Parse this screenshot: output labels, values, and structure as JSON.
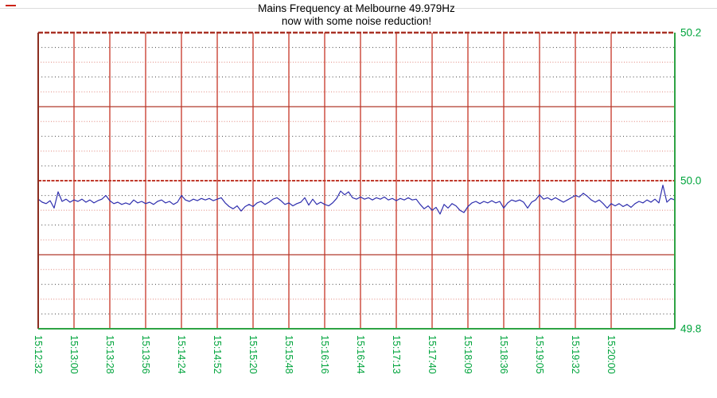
{
  "header": {
    "title": "Mains Frequency at Melbourne 49.979Hz",
    "subtitle": "now with some noise reduction!"
  },
  "decor": {
    "legend_dash_color": "#cc2211",
    "top_rule_color": "#dcdcdc"
  },
  "chart_data": {
    "type": "line",
    "title": "Mains Frequency at Melbourne 49.979Hz",
    "subtitle": "now with some noise reduction!",
    "ylabel": "",
    "xlabel": "",
    "ylim": [
      49.8,
      50.2
    ],
    "y_major_step": 0.1,
    "y_minor_step": 0.02,
    "y_tick_values": [
      50.2,
      50.0,
      49.8
    ],
    "y_tick_labels": [
      "50.2",
      "50.0",
      "49.8"
    ],
    "x_tick_labels": [
      "15:12:32",
      "15:13:00",
      "15:13:28",
      "15:13:56",
      "15:14:24",
      "15:14:52",
      "15:15:20",
      "15:15:48",
      "15:16:16",
      "15:16:44",
      "15:17:13",
      "15:17:40",
      "15:18:09",
      "15:18:36",
      "15:19:05",
      "15:19:32",
      "15:20:00"
    ],
    "x_tick_interval_seconds": 28,
    "x_total_span_in_tick_units": 17.78,
    "grid": {
      "vline_color": "#cb4335",
      "hmajor_color": "#b03a2c",
      "hmajor_zero_color": "#c0392b",
      "minor_dark_color": "#3f3f3f",
      "minor_pink_color": "#e4948a",
      "border_top_color": "#a93226",
      "border_left_color": "#8c2d20",
      "border_right_color": "#2ea344",
      "border_bottom_color": "#2ea344",
      "axis_label_color": "#00a43c"
    },
    "series": [
      {
        "name": "mains-frequency-hz",
        "color": "#2f2fae",
        "values": [
          49.975,
          49.971,
          49.969,
          49.973,
          49.963,
          49.985,
          49.972,
          49.975,
          49.971,
          49.974,
          49.972,
          49.975,
          49.971,
          49.974,
          49.97,
          49.973,
          49.975,
          49.98,
          49.973,
          49.969,
          49.971,
          49.968,
          49.97,
          49.968,
          49.974,
          49.97,
          49.972,
          49.969,
          49.971,
          49.968,
          49.972,
          49.974,
          49.97,
          49.972,
          49.968,
          49.971,
          49.98,
          49.974,
          49.972,
          49.975,
          49.973,
          49.976,
          49.974,
          49.976,
          49.973,
          49.975,
          49.977,
          49.97,
          49.965,
          49.962,
          49.966,
          49.959,
          49.965,
          49.968,
          49.965,
          49.97,
          49.972,
          49.968,
          49.971,
          49.975,
          49.977,
          49.973,
          49.968,
          49.97,
          49.966,
          49.969,
          49.971,
          49.977,
          49.967,
          49.975,
          49.968,
          49.971,
          49.968,
          49.966,
          49.97,
          49.976,
          49.986,
          49.981,
          49.985,
          49.977,
          49.975,
          49.978,
          49.975,
          49.977,
          49.974,
          49.977,
          49.975,
          49.978,
          49.974,
          49.976,
          49.973,
          49.976,
          49.974,
          49.977,
          49.974,
          49.975,
          49.968,
          49.962,
          49.966,
          49.96,
          49.964,
          49.955,
          49.968,
          49.963,
          49.969,
          49.966,
          49.96,
          49.957,
          49.965,
          49.97,
          49.972,
          49.969,
          49.972,
          49.97,
          49.973,
          49.97,
          49.972,
          49.963,
          49.97,
          49.974,
          49.972,
          49.974,
          49.971,
          49.963,
          49.971,
          49.974,
          49.981,
          49.975,
          49.977,
          49.974,
          49.977,
          49.974,
          49.971,
          49.974,
          49.977,
          49.98,
          49.978,
          49.983,
          49.979,
          49.974,
          49.971,
          49.974,
          49.969,
          49.963,
          49.969,
          49.966,
          49.969,
          49.965,
          49.968,
          49.964,
          49.969,
          49.972,
          49.97,
          49.974,
          49.971,
          49.975,
          49.97,
          49.994,
          49.971,
          49.976,
          49.974
        ]
      }
    ]
  }
}
